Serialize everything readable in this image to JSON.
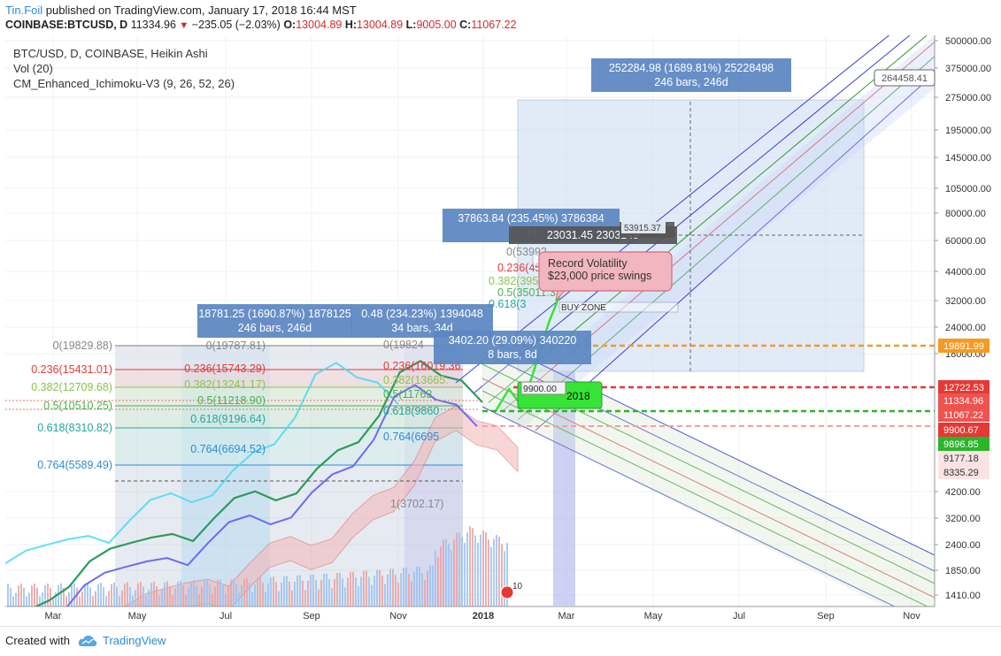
{
  "header": {
    "author": "Tin.Foil",
    "published": "published on TradingView.com, January 17, 2018 16:44 MST",
    "symbol": "COINBASE:BTCUSD, D",
    "last": "11334.96",
    "change": "−235.05 (−2.03%)",
    "o_label": "O:",
    "o_value": "13004.89",
    "h_label": "H:",
    "h_value": "13004.89",
    "l_label": "L:",
    "l_value": "9005.00",
    "c_label": "C:",
    "c_value": "11067.22"
  },
  "legend": {
    "line1": "BTC/USD, D, COINBASE, Heikin Ashi",
    "line2": "Vol (20)",
    "line3": "CM_Enhanced_Ichimoku-V3 (9, 26, 52, 26)"
  },
  "footer": {
    "created_with": "Created with",
    "brand": "TradingView"
  },
  "colors": {
    "up": "#26a69a",
    "down": "#ef5350",
    "accent": "#2e8bd6",
    "orange": "#f59a23",
    "red": "#e53935",
    "green": "#43c943"
  },
  "chart_data": {
    "type": "line",
    "title": "",
    "y_scale": "log",
    "ylim": [
      1300,
      520000
    ],
    "x_ticks": [
      "Mar",
      "May",
      "Jul",
      "Sep",
      "Nov",
      "2018",
      "Mar",
      "May",
      "Jul",
      "Sep",
      "Nov"
    ],
    "y_ticks": [
      "500000.00",
      "375000.00",
      "275000.00",
      "195000.00",
      "145000.00",
      "105000.00",
      "80000.00",
      "60000.00",
      "44000.00",
      "32000.00",
      "24000.00",
      "18000.00",
      "4200.00",
      "3200.00",
      "2400.00",
      "1850.00",
      "1410.00"
    ],
    "price_labels": [
      {
        "text": "264458.41",
        "color": "#ffffff"
      },
      {
        "text": "19891.99",
        "color": "#f59a23"
      },
      {
        "text": "12722.53",
        "color": "#e53935"
      },
      {
        "text": "11334.96",
        "color": "#ef5350"
      },
      {
        "text": "11067.22",
        "color": "#ef5350"
      },
      {
        "text": "9900.67",
        "color": "#e53935"
      },
      {
        "text": "9896.85",
        "color": "#2bb52b"
      },
      {
        "text": "9177.18",
        "color": "#f4a7a7"
      },
      {
        "text": "8335.29",
        "color": "#f4a7a7"
      }
    ],
    "series": [
      {
        "values": [
          1150,
          1250,
          1380,
          1600,
          2100,
          2400,
          2550,
          2700,
          2800,
          2600,
          3300,
          4100,
          4400,
          4000,
          4300,
          5600,
          6800,
          7400,
          9800,
          15500,
          17500,
          15000,
          14200,
          11300
        ]
      }
    ],
    "fib_left": [
      "0(19829.88)",
      "0.236(15431.01)",
      "0.382(12709.68)",
      "0.5(10510.25)",
      "0.618(8310.82)",
      "0.764(5589.49)"
    ],
    "fib_mid": [
      "0(19787.81)",
      "0.236(15743.29)",
      "0.382(13241.17)",
      "0.5(11218.90)",
      "0.618(9196.64)",
      "0.764(6694.52)"
    ],
    "fib_right": [
      "0(19824",
      "0.236(16019.36",
      "0.382(13665.",
      "0.5(11763.",
      "0.618(9860",
      "0.764(6695",
      "1(3702.17)"
    ],
    "fib_upper": [
      "0(53992.",
      "0.236(45056.",
      "0.382(3952",
      "0.5(35011.33",
      "0.618(3"
    ],
    "boxes": [
      {
        "l1": "18781.25 (1690.87%) 1878125",
        "l2": "246 bars, 246d"
      },
      {
        "l1": "0.48 (234.23%) 1394048",
        "l2": "34 bars, 34d"
      },
      {
        "l1": "3402.20 (29.09%) 340220",
        "l2": "8 bars, 8d"
      },
      {
        "l1": "37863.84 (235.45%) 3786384",
        "l2": "34"
      },
      {
        "l1": "23031.45",
        "l2": "2303149"
      },
      {
        "l1": "252284.98 (1689.81%) 25228498",
        "l2": "246 bars, 246d"
      }
    ],
    "misc_labels": [
      "53915.37",
      "9900.00",
      "2018",
      "BUY ZONE",
      "10"
    ],
    "annotation": {
      "line1": "Record Volatility",
      "line2": "$23,000 price swings"
    }
  }
}
